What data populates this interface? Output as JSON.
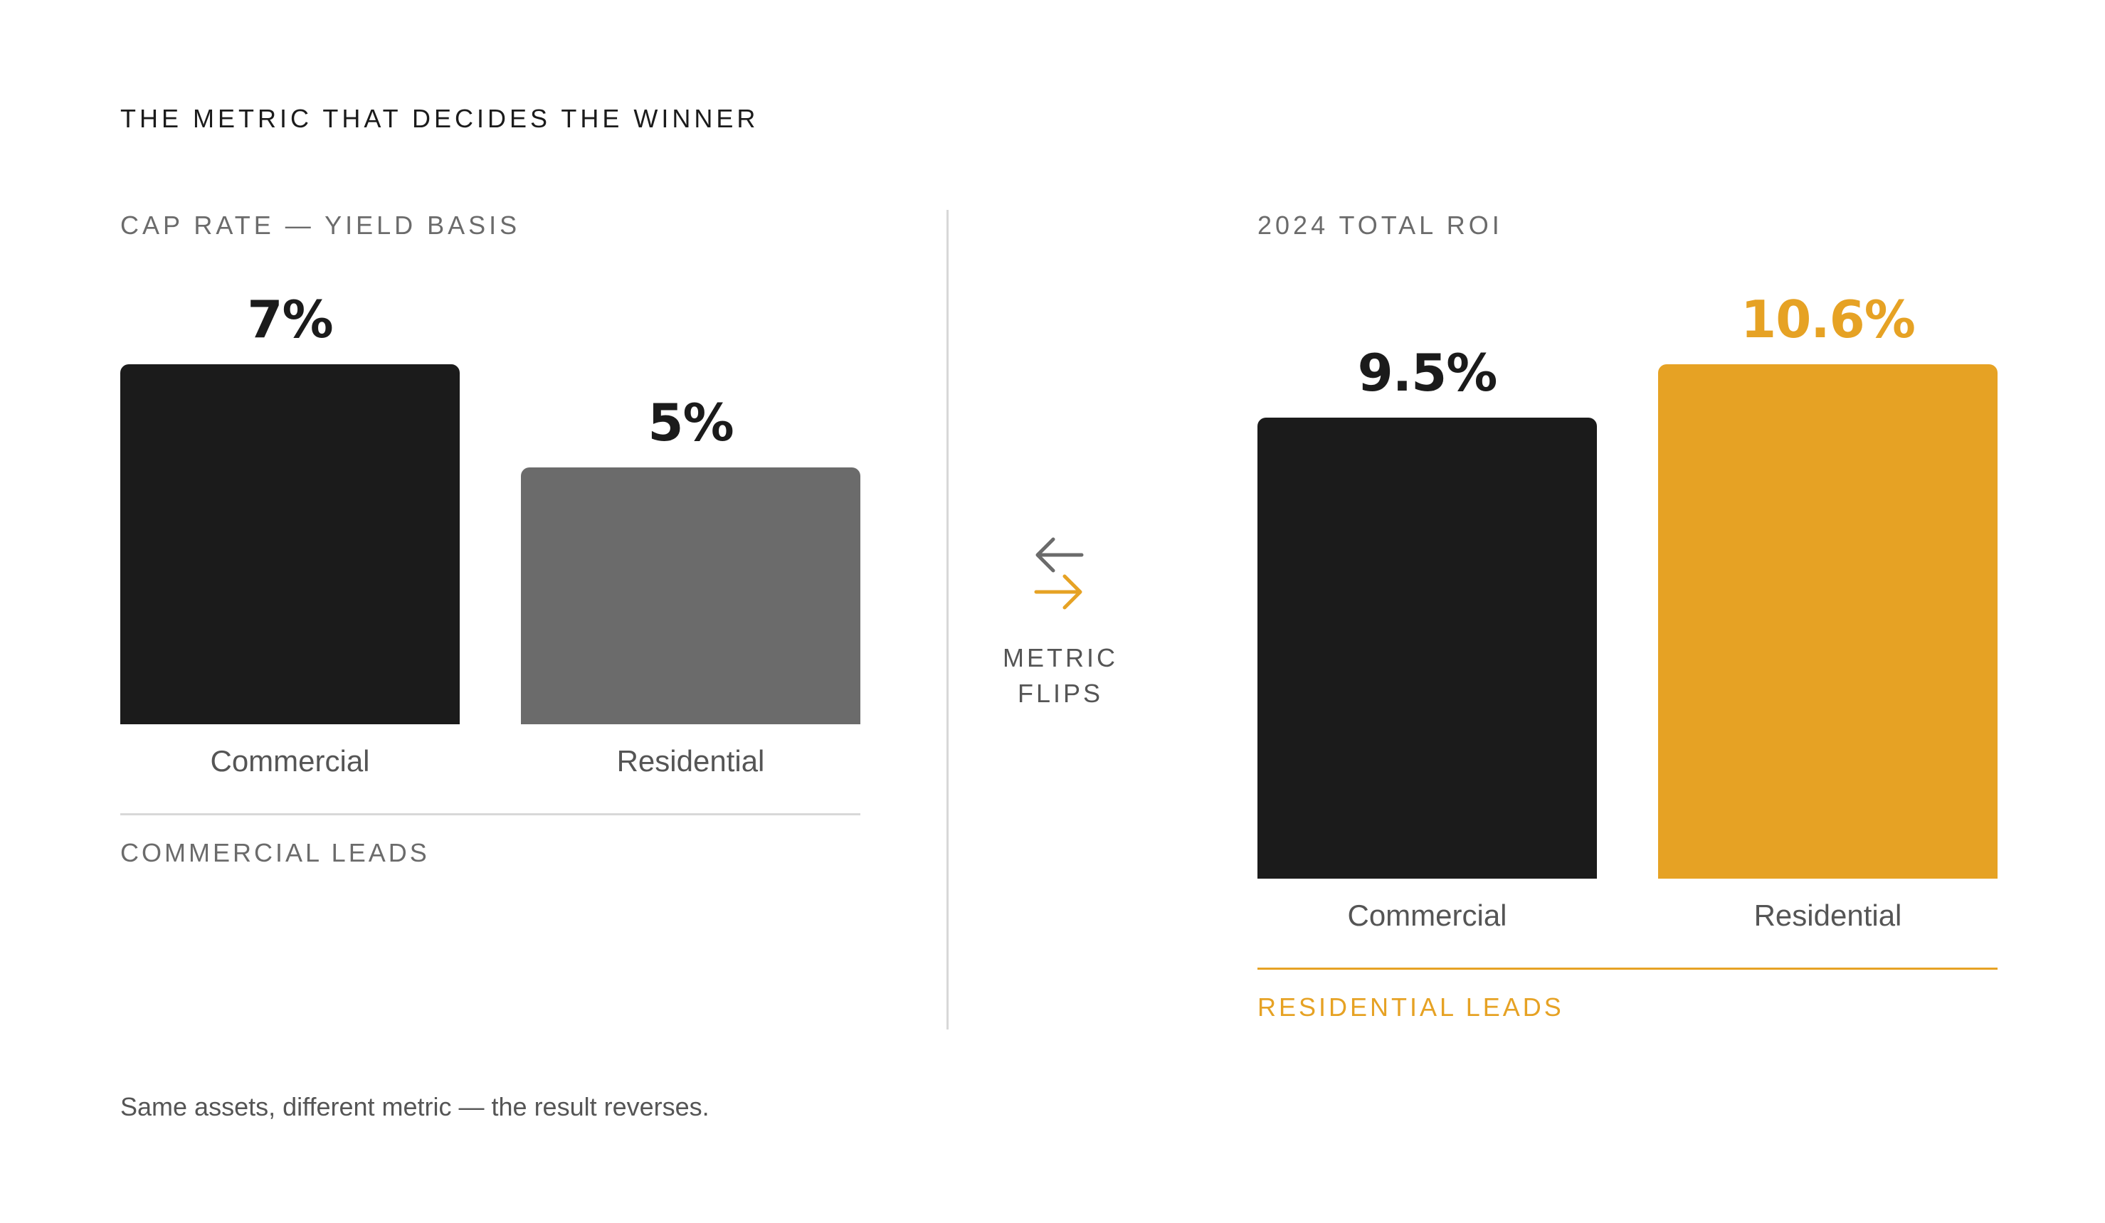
{
  "header": {
    "title": "THE METRIC THAT DECIDES THE WINNER"
  },
  "middle": {
    "flip_line1": "METRIC",
    "flip_line2": "FLIPS",
    "icon": "swap-arrows-icon"
  },
  "footnote": "Same assets, different metric — the result reverses.",
  "colors": {
    "commercial": "#1b1b1b",
    "residential_muted": "#6b6b6b",
    "accent": "#e6a224",
    "label": "#6b6b6b"
  },
  "chart_data": [
    {
      "type": "bar",
      "title": "CAP RATE — YIELD BASIS",
      "categories": [
        "Commercial",
        "Residential"
      ],
      "values": [
        7,
        5
      ],
      "value_labels": [
        "7%",
        "5%"
      ],
      "unit": "%",
      "ylim": [
        0,
        7
      ],
      "grid": false,
      "verdict": "COMMERCIAL LEADS"
    },
    {
      "type": "bar",
      "title": "2024 TOTAL ROI",
      "categories": [
        "Commercial",
        "Residential"
      ],
      "values": [
        9.5,
        10.6
      ],
      "value_labels": [
        "9.5%",
        "10.6%"
      ],
      "unit": "%",
      "ylim": [
        0,
        10.6
      ],
      "grid": false,
      "verdict": "RESIDENTIAL LEADS"
    }
  ]
}
